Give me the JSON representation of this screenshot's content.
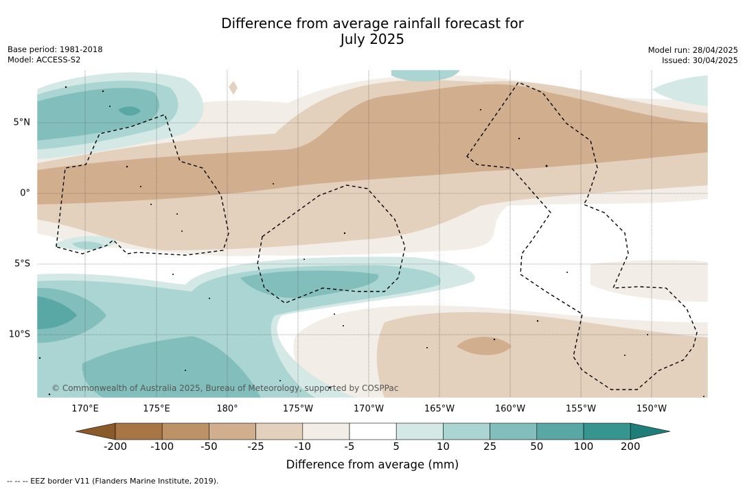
{
  "title_line1": "Difference from average rainfall forecast for",
  "title_line2": "July 2025",
  "base_period": "Base period: 1981-2018",
  "model": "Model: ACCESS-S2",
  "model_run": "Model run: 28/04/2025",
  "issued": "Issued: 30/04/2025",
  "copyright": "© Commonwealth of Australia 2025, Bureau of Meteorology, supported by COSPPac",
  "lon_labels": [
    "170°E",
    "175°E",
    "180°",
    "175°W",
    "170°W",
    "165°W",
    "160°W",
    "155°W",
    "150°W"
  ],
  "lat_labels": [
    "5°N",
    "0°",
    "5°S",
    "10°S"
  ],
  "colorbar": {
    "title": "Difference from average (mm)",
    "ticks": [
      "-200",
      "-100",
      "-50",
      "-25",
      "-10",
      "-5",
      "5",
      "10",
      "25",
      "50",
      "100",
      "200"
    ],
    "colors": [
      "#8b5a2b",
      "#a87645",
      "#bd9266",
      "#d1ae8d",
      "#e3d0bd",
      "#f2ede6",
      "#ffffff",
      "#d4e8e6",
      "#aad5d2",
      "#82bfbc",
      "#5aa8a6",
      "#37958f",
      "#1f7e7a"
    ]
  },
  "footnote": "--  --  -- EEZ border V11 (Flanders Marine Institute, 2019)."
}
